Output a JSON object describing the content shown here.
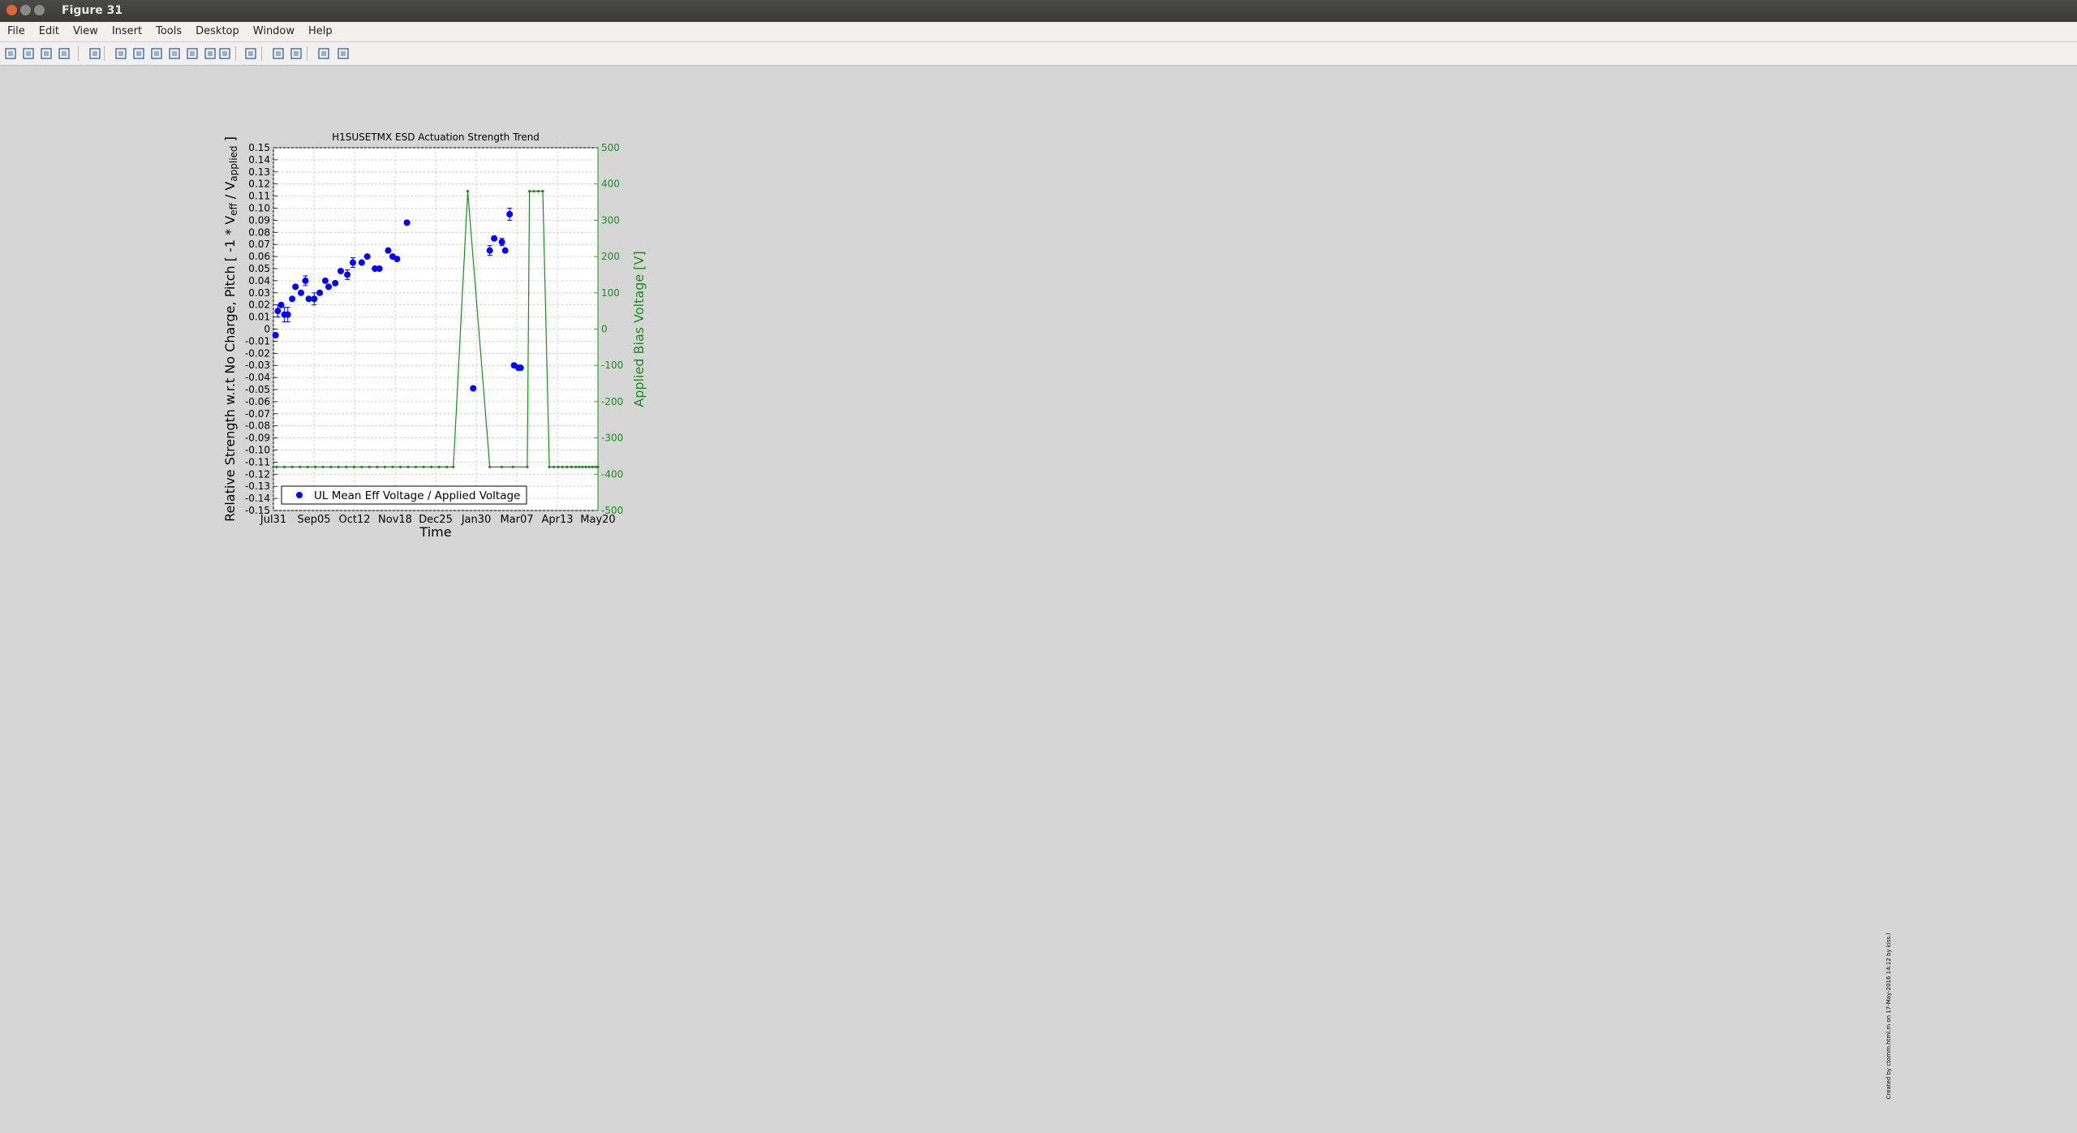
{
  "window": {
    "title": "Figure 31"
  },
  "menu": [
    "File",
    "Edit",
    "View",
    "Insert",
    "Tools",
    "Desktop",
    "Window",
    "Help"
  ],
  "toolbar_icons": [
    "new-figure-icon",
    "open-file-icon",
    "save-icon",
    "print-icon",
    "select-arrow-icon",
    "zoom-in-icon",
    "zoom-out-icon",
    "pan-hand-icon",
    "rotate-3d-icon",
    "data-cursor-icon",
    "brush-icon",
    "brush-dropdown-icon",
    "link-plot-icon",
    "colorbar-icon",
    "legend-icon",
    "hide-plot-tools-icon",
    "show-plot-tools-icon"
  ],
  "colors": {
    "voltage": "#1e8a1e",
    "grid": "#b5b5b5",
    "background": "#d6d6d6"
  },
  "side_annotation": "Created by ctomm.html.m on 17-May-2016 14:12 by kiss.l",
  "chart_data": [
    {
      "type": "scatter",
      "title": "H1SUSETMX ESD Actuation Strength Trend",
      "xlabel": "Time",
      "ylabel": "Relative Strength w.r.t No Charge, Pitch [ -1 * V_eff / V_applied ]",
      "ylabel_parts": [
        "Relative Strength w.r.t No Charge, Pitch [ -1 * V",
        "eff",
        " / V",
        "applied",
        " ]"
      ],
      "y2label": "Applied Bias Voltage [V]",
      "ylim": [
        -0.15,
        0.15
      ],
      "y2lim": [
        -500,
        500
      ],
      "xlim": [
        0,
        294
      ],
      "xtick_labels": [
        "Jul31",
        "Sep05",
        "Oct12",
        "Nov18",
        "Dec25",
        "Jan30",
        "Mar07",
        "Apr13",
        "May20"
      ],
      "legend": "UL Mean Eff Voltage / Applied Voltage",
      "legend_position": "bottom-left",
      "marker_color": "#0000ff",
      "voltage_x": [
        0,
        3,
        10,
        17,
        24,
        31,
        38,
        45,
        52,
        59,
        66,
        73,
        80,
        87,
        94,
        101,
        108,
        115,
        122,
        129,
        136,
        143,
        150,
        157,
        163,
        176,
        196,
        207,
        217,
        230,
        232,
        236,
        240,
        244,
        250,
        254,
        258,
        262,
        266,
        270,
        274,
        277,
        280,
        283,
        286,
        289,
        292,
        294
      ],
      "voltage_y": [
        -380,
        -380,
        -380,
        -380,
        -380,
        -380,
        -380,
        -380,
        -380,
        -380,
        -380,
        -380,
        -380,
        -380,
        -380,
        -380,
        -380,
        -380,
        -380,
        -380,
        -380,
        -380,
        -380,
        -380,
        -380,
        380,
        -380,
        -380,
        -380,
        -380,
        380,
        380,
        380,
        380,
        -380,
        -380,
        -380,
        -380,
        -380,
        -380,
        -380,
        -380,
        -380,
        -380,
        -380,
        -380,
        -380,
        -380
      ],
      "points": [
        {
          "x": 2,
          "y": -0.005,
          "err": 0
        },
        {
          "x": 4,
          "y": 0.015,
          "err": 0.005
        },
        {
          "x": 7,
          "y": 0.02,
          "err": 0
        },
        {
          "x": 10,
          "y": 0.012,
          "err": 0.006
        },
        {
          "x": 13,
          "y": 0.012,
          "err": 0.006
        },
        {
          "x": 17,
          "y": 0.025,
          "err": 0
        },
        {
          "x": 20,
          "y": 0.035,
          "err": 0
        },
        {
          "x": 25,
          "y": 0.03,
          "err": 0
        },
        {
          "x": 29,
          "y": 0.04,
          "err": 0.004
        },
        {
          "x": 32,
          "y": 0.025,
          "err": 0
        },
        {
          "x": 37,
          "y": 0.025,
          "err": 0.005
        },
        {
          "x": 42,
          "y": 0.03,
          "err": 0
        },
        {
          "x": 47,
          "y": 0.04,
          "err": 0
        },
        {
          "x": 50,
          "y": 0.035,
          "err": 0
        },
        {
          "x": 56,
          "y": 0.038,
          "err": 0
        },
        {
          "x": 61,
          "y": 0.048,
          "err": 0
        },
        {
          "x": 67,
          "y": 0.045,
          "err": 0.004
        },
        {
          "x": 72,
          "y": 0.055,
          "err": 0.004
        },
        {
          "x": 80,
          "y": 0.055,
          "err": 0
        },
        {
          "x": 85,
          "y": 0.06,
          "err": 0
        },
        {
          "x": 92,
          "y": 0.05,
          "err": 0
        },
        {
          "x": 96,
          "y": 0.05,
          "err": 0
        },
        {
          "x": 104,
          "y": 0.065,
          "err": 0
        },
        {
          "x": 108,
          "y": 0.06,
          "err": 0
        },
        {
          "x": 112,
          "y": 0.058,
          "err": 0
        },
        {
          "x": 121,
          "y": 0.088,
          "err": 0
        },
        {
          "x": 181,
          "y": -0.049,
          "err": 0
        },
        {
          "x": 196,
          "y": 0.065,
          "err": 0.004
        },
        {
          "x": 200,
          "y": 0.075,
          "err": 0
        },
        {
          "x": 207,
          "y": 0.072,
          "err": 0.003
        },
        {
          "x": 210,
          "y": 0.065,
          "err": 0
        },
        {
          "x": 214,
          "y": 0.095,
          "err": 0.005
        },
        {
          "x": 218,
          "y": -0.03,
          "err": 0
        },
        {
          "x": 222,
          "y": -0.032,
          "err": 0
        },
        {
          "x": 224,
          "y": -0.032,
          "err": 0
        }
      ],
      "pitch_x_scale": "custom"
    }
  ]
}
